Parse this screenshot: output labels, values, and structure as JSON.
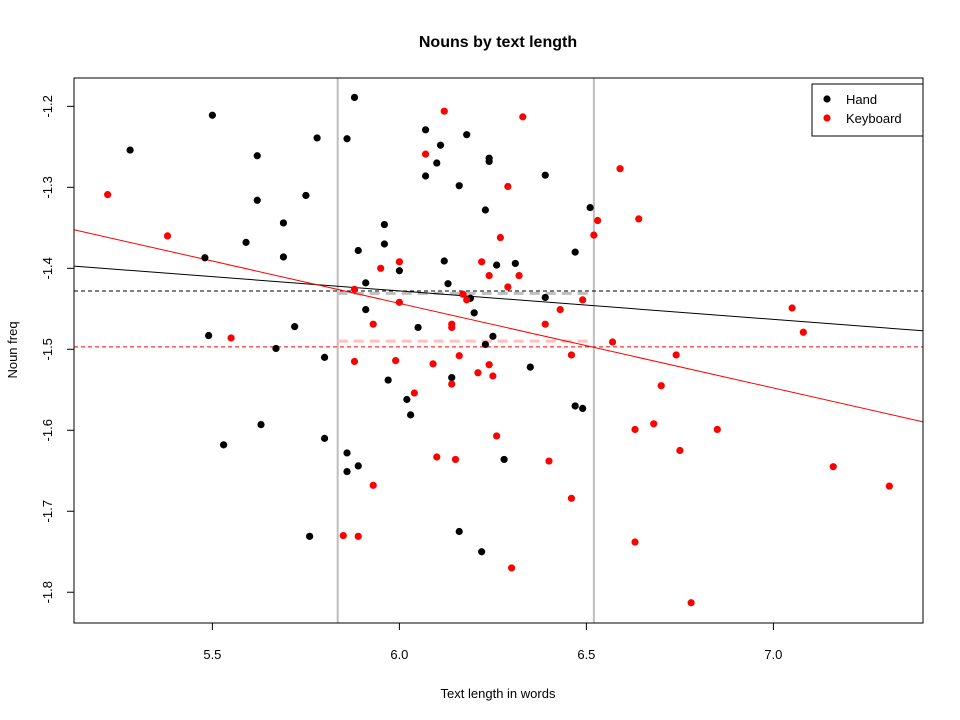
{
  "chart_data": {
    "type": "scatter",
    "title": "Nouns by text length",
    "xlabel": "Text length in words",
    "ylabel": "Noun freq",
    "xlim": [
      5.13,
      7.4
    ],
    "ylim": [
      -1.838,
      -1.165
    ],
    "x_ticks": [
      5.5,
      6.0,
      6.5,
      7.0
    ],
    "x_tick_labels": [
      "5.5",
      "6.0",
      "6.5",
      "7.0"
    ],
    "y_ticks": [
      -1.8,
      -1.7,
      -1.6,
      -1.5,
      -1.4,
      -1.3,
      -1.2
    ],
    "y_tick_labels": [
      "-1.8",
      "-1.7",
      "-1.6",
      "-1.5",
      "-1.4",
      "-1.3",
      "-1.2"
    ],
    "grid": false,
    "legend_position": "top-right",
    "colors": {
      "hand": "#000000",
      "keyboard": "#ff0000",
      "reference_line": "#bebebe"
    },
    "series": [
      {
        "name": "Hand",
        "color": "#000000",
        "points": [
          [
            5.28,
            -1.254
          ],
          [
            5.5,
            -1.211
          ],
          [
            5.48,
            -1.387
          ],
          [
            5.49,
            -1.483
          ],
          [
            5.53,
            -1.618
          ],
          [
            5.59,
            -1.368
          ],
          [
            5.62,
            -1.261
          ],
          [
            5.62,
            -1.316
          ],
          [
            5.63,
            -1.593
          ],
          [
            5.67,
            -1.499
          ],
          [
            5.69,
            -1.344
          ],
          [
            5.69,
            -1.386
          ],
          [
            5.72,
            -1.472
          ],
          [
            5.75,
            -1.31
          ],
          [
            5.76,
            -1.731
          ],
          [
            5.78,
            -1.239
          ],
          [
            5.8,
            -1.61
          ],
          [
            5.8,
            -1.51
          ],
          [
            5.86,
            -1.24
          ],
          [
            5.86,
            -1.628
          ],
          [
            5.86,
            -1.651
          ],
          [
            5.88,
            -1.189
          ],
          [
            5.89,
            -1.378
          ],
          [
            5.89,
            -1.644
          ],
          [
            5.91,
            -1.451
          ],
          [
            5.91,
            -1.418
          ],
          [
            5.96,
            -1.346
          ],
          [
            5.96,
            -1.37
          ],
          [
            5.97,
            -1.538
          ],
          [
            6.0,
            -1.403
          ],
          [
            6.02,
            -1.562
          ],
          [
            6.03,
            -1.581
          ],
          [
            6.05,
            -1.473
          ],
          [
            6.07,
            -1.229
          ],
          [
            6.07,
            -1.286
          ],
          [
            6.1,
            -1.27
          ],
          [
            6.11,
            -1.248
          ],
          [
            6.12,
            -1.391
          ],
          [
            6.13,
            -1.419
          ],
          [
            6.14,
            -1.535
          ],
          [
            6.16,
            -1.298
          ],
          [
            6.16,
            -1.725
          ],
          [
            6.18,
            -1.235
          ],
          [
            6.19,
            -1.437
          ],
          [
            6.2,
            -1.455
          ],
          [
            6.22,
            -1.75
          ],
          [
            6.23,
            -1.494
          ],
          [
            6.23,
            -1.328
          ],
          [
            6.24,
            -1.264
          ],
          [
            6.24,
            -1.268
          ],
          [
            6.25,
            -1.484
          ],
          [
            6.26,
            -1.396
          ],
          [
            6.28,
            -1.636
          ],
          [
            6.31,
            -1.394
          ],
          [
            6.35,
            -1.522
          ],
          [
            6.39,
            -1.285
          ],
          [
            6.39,
            -1.436
          ],
          [
            6.47,
            -1.38
          ],
          [
            6.47,
            -1.57
          ],
          [
            6.49,
            -1.573
          ],
          [
            6.51,
            -1.325
          ]
        ]
      },
      {
        "name": "Keyboard",
        "color": "#ff0000",
        "points": [
          [
            5.22,
            -1.309
          ],
          [
            5.38,
            -1.36
          ],
          [
            5.55,
            -1.486
          ],
          [
            5.85,
            -1.73
          ],
          [
            5.88,
            -1.426
          ],
          [
            5.88,
            -1.515
          ],
          [
            5.89,
            -1.731
          ],
          [
            5.93,
            -1.668
          ],
          [
            5.93,
            -1.469
          ],
          [
            5.95,
            -1.4
          ],
          [
            5.99,
            -1.514
          ],
          [
            6.0,
            -1.392
          ],
          [
            6.0,
            -1.442
          ],
          [
            6.04,
            -1.554
          ],
          [
            6.07,
            -1.259
          ],
          [
            6.09,
            -1.518
          ],
          [
            6.1,
            -1.633
          ],
          [
            6.12,
            -1.206
          ],
          [
            6.14,
            -1.473
          ],
          [
            6.14,
            -1.543
          ],
          [
            6.14,
            -1.469
          ],
          [
            6.15,
            -1.636
          ],
          [
            6.16,
            -1.508
          ],
          [
            6.17,
            -1.432
          ],
          [
            6.18,
            -1.439
          ],
          [
            6.21,
            -1.529
          ],
          [
            6.22,
            -1.392
          ],
          [
            6.24,
            -1.519
          ],
          [
            6.24,
            -1.409
          ],
          [
            6.25,
            -1.533
          ],
          [
            6.26,
            -1.607
          ],
          [
            6.27,
            -1.362
          ],
          [
            6.29,
            -1.423
          ],
          [
            6.29,
            -1.299
          ],
          [
            6.3,
            -1.77
          ],
          [
            6.32,
            -1.409
          ],
          [
            6.33,
            -1.213
          ],
          [
            6.39,
            -1.469
          ],
          [
            6.4,
            -1.638
          ],
          [
            6.43,
            -1.451
          ],
          [
            6.46,
            -1.507
          ],
          [
            6.46,
            -1.684
          ],
          [
            6.49,
            -1.439
          ],
          [
            6.52,
            -1.359
          ],
          [
            6.53,
            -1.341
          ],
          [
            6.57,
            -1.491
          ],
          [
            6.59,
            -1.277
          ],
          [
            6.63,
            -1.599
          ],
          [
            6.63,
            -1.738
          ],
          [
            6.64,
            -1.339
          ],
          [
            6.68,
            -1.592
          ],
          [
            6.7,
            -1.545
          ],
          [
            6.74,
            -1.507
          ],
          [
            6.75,
            -1.625
          ],
          [
            6.78,
            -1.813
          ],
          [
            6.85,
            -1.599
          ],
          [
            7.05,
            -1.449
          ],
          [
            7.08,
            -1.479
          ],
          [
            7.16,
            -1.645
          ],
          [
            7.31,
            -1.669
          ]
        ]
      }
    ],
    "regression_lines": [
      {
        "series": "Hand",
        "color": "#000000",
        "intercept": -1.2167,
        "slope": -0.0352,
        "style": "solid"
      },
      {
        "series": "Keyboard",
        "color": "#ff0000",
        "intercept": -0.8163,
        "slope": -0.1045,
        "style": "solid"
      }
    ],
    "mean_lines_y": [
      {
        "series": "Hand",
        "color": "#000000",
        "y": -1.428,
        "style": "dashed"
      },
      {
        "series": "Keyboard",
        "color": "#ff0000",
        "y": -1.497,
        "style": "dashed"
      }
    ],
    "vertical_reference_lines_x": [
      5.835,
      6.52
    ],
    "inner_segments": [
      {
        "color": "#bebebe",
        "y": -1.431,
        "x": [
          5.835,
          6.52
        ]
      },
      {
        "color": "#ffc0c0",
        "y": -1.49,
        "x": [
          5.835,
          6.52
        ]
      }
    ]
  }
}
